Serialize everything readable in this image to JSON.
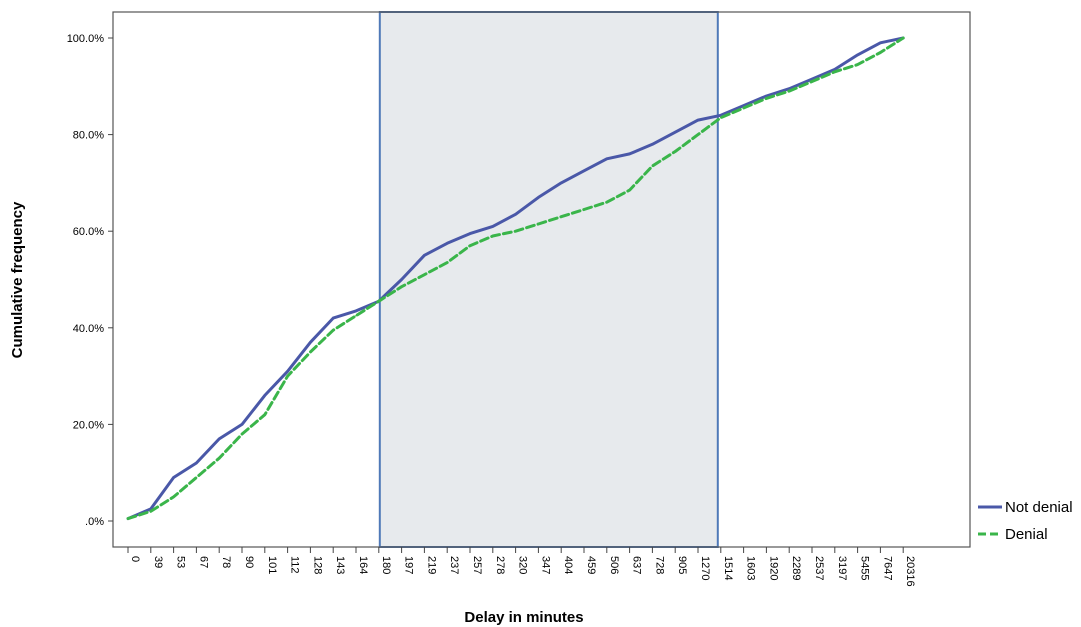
{
  "chart_data": {
    "type": "line",
    "title": "",
    "xlabel": "Delay in minutes",
    "ylabel": "Cumulative frequency",
    "y_ticks": [
      ".0%",
      "20.0%",
      "40.0%",
      "60.0%",
      "80.0%",
      "100.0%"
    ],
    "ylim": [
      0,
      100
    ],
    "x_ticks": [
      "0",
      "39",
      "53",
      "67",
      "78",
      "90",
      "101",
      "112",
      "128",
      "143",
      "164",
      "180",
      "197",
      "219",
      "237",
      "257",
      "278",
      "320",
      "347",
      "404",
      "459",
      "506",
      "637",
      "728",
      "905",
      "1270",
      "1514",
      "1603",
      "1920",
      "2289",
      "2537",
      "3197",
      "5455",
      "7647",
      "20316"
    ],
    "highlight_range": [
      "180",
      "1514"
    ],
    "legend_position": "right",
    "grid": false,
    "series": [
      {
        "name": "Not denial",
        "color": "#4a58a8",
        "style": "solid",
        "x_ticks_index": [
          0,
          1,
          2,
          3,
          4,
          5,
          6,
          7,
          8,
          9,
          10,
          11,
          12,
          13,
          14,
          15,
          16,
          17,
          18,
          19,
          20,
          21,
          22,
          23,
          24,
          25,
          26,
          27,
          28,
          29,
          30,
          31,
          32,
          33,
          34
        ],
        "values": [
          0.5,
          2.5,
          9,
          12,
          17,
          20,
          26,
          31,
          37,
          42,
          43.5,
          45.5,
          50,
          55,
          57.5,
          59.5,
          61,
          63.5,
          67,
          70,
          72.5,
          75,
          76,
          78,
          80.5,
          83,
          84,
          86,
          88,
          89.5,
          91.5,
          93.5,
          96.5,
          99,
          100
        ]
      },
      {
        "name": "Denial",
        "color": "#3ab54a",
        "style": "dashed",
        "x_ticks_index": [
          0,
          1,
          2,
          3,
          4,
          5,
          6,
          7,
          8,
          9,
          10,
          11,
          12,
          13,
          14,
          15,
          16,
          17,
          18,
          19,
          20,
          21,
          22,
          23,
          24,
          25,
          26,
          27,
          28,
          29,
          30,
          31,
          32,
          33,
          34
        ],
        "values": [
          0.5,
          2,
          5,
          9,
          13,
          18,
          22,
          30,
          35,
          39.5,
          42.5,
          45.5,
          48.5,
          51,
          53.5,
          57,
          59,
          60,
          61.5,
          63,
          64.5,
          66,
          68.5,
          73.5,
          76.5,
          80,
          83.5,
          85.5,
          87.5,
          89,
          91,
          93,
          94.5,
          97,
          100
        ]
      }
    ]
  }
}
